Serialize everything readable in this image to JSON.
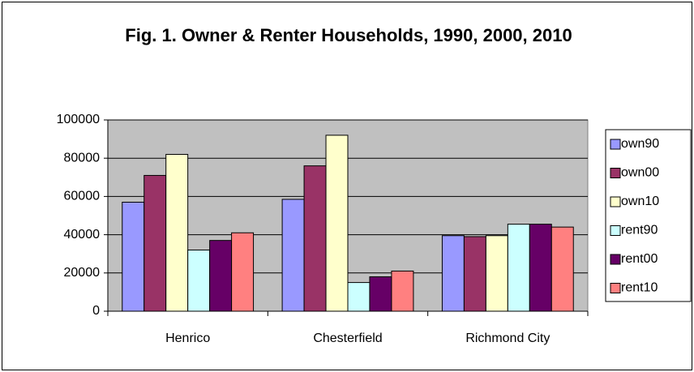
{
  "chart_data": {
    "type": "bar",
    "title": "Fig. 1. Owner & Renter Households, 1990, 2000, 2010",
    "categories": [
      "Henrico",
      "Chesterfield",
      "Richmond City"
    ],
    "series": [
      {
        "name": "own90",
        "color": "#9999ff",
        "values": [
          57000,
          58500,
          39500
        ]
      },
      {
        "name": "own00",
        "color": "#993366",
        "values": [
          71000,
          76000,
          39000
        ]
      },
      {
        "name": "own10",
        "color": "#ffffcc",
        "values": [
          82000,
          92000,
          39500
        ]
      },
      {
        "name": "rent90",
        "color": "#ccffff",
        "values": [
          32000,
          15000,
          45500
        ]
      },
      {
        "name": "rent00",
        "color": "#660066",
        "values": [
          37000,
          18000,
          45500
        ]
      },
      {
        "name": "rent10",
        "color": "#ff8080",
        "values": [
          41000,
          21000,
          44000
        ]
      }
    ],
    "ylim": [
      0,
      100000
    ],
    "yticks": [
      0,
      20000,
      40000,
      60000,
      80000,
      100000
    ],
    "grid": true,
    "legend": "right"
  }
}
